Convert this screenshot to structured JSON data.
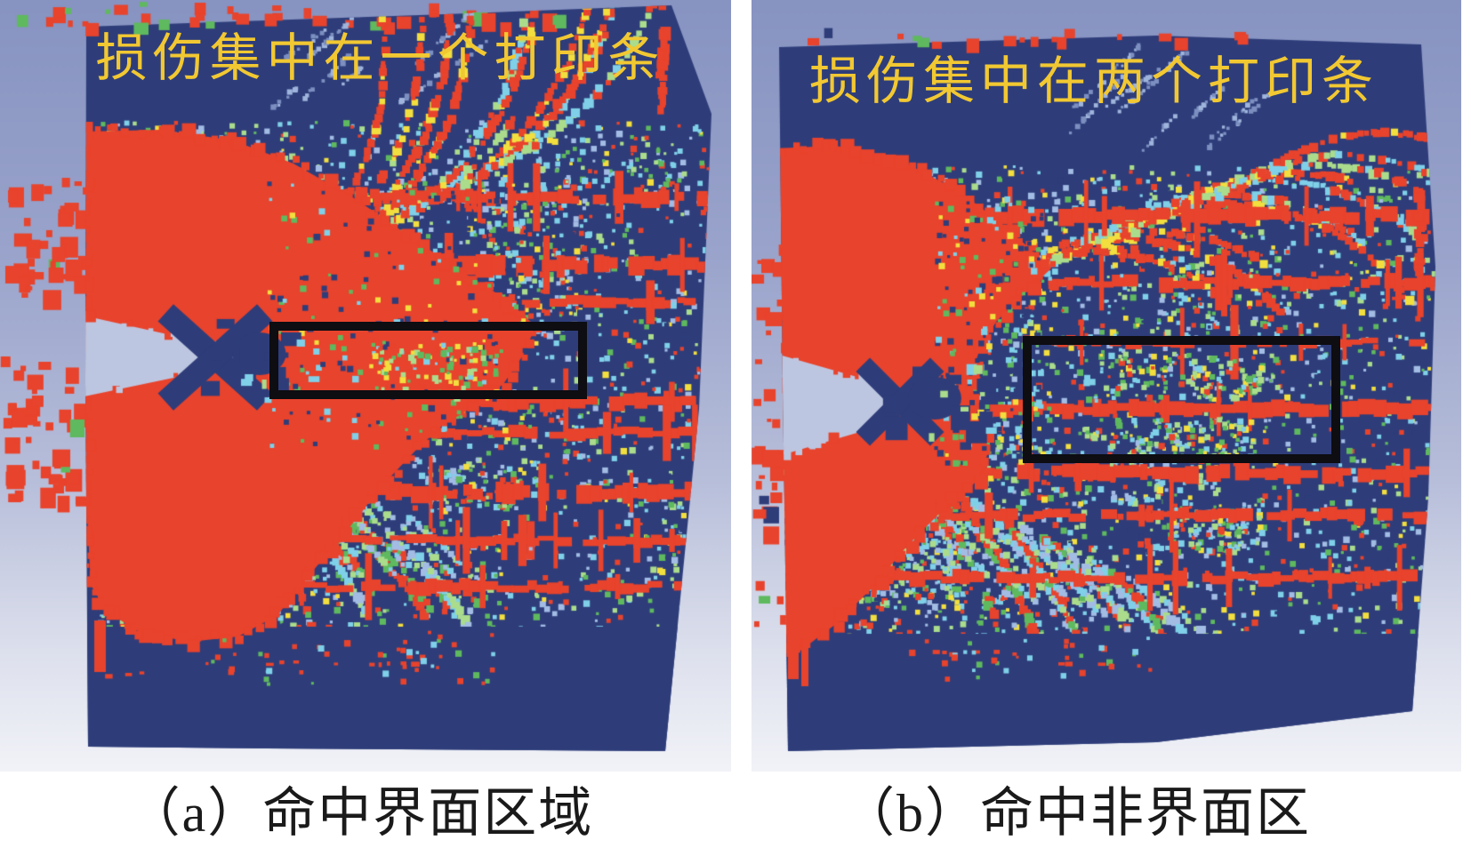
{
  "figure": {
    "panels": [
      {
        "id": "a",
        "overlay_label": "损伤集中在一个打印条",
        "caption": "（a）命中界面区域"
      },
      {
        "id": "b",
        "overlay_label": "损伤集中在两个打印条",
        "caption": "（b）命中非界面区"
      }
    ],
    "palette": {
      "page_bg": "#FFFFFF",
      "background_top": "#8793C1",
      "background_mid": "#B7BEDA",
      "background_bottom": "#F2F3F8",
      "body_navy": "#2E3D7A",
      "damage_red": "#E8432C",
      "speckle_cyan": "#7FD0E8",
      "speckle_green": "#5FB95E",
      "speckle_lightgreen": "#AADC8C",
      "speckle_yellow": "#F2DE3E",
      "speckle_lightblue": "#A2BCE4",
      "notch_light": "#BDC6E0",
      "overlay_text_yellow": "#F2C832",
      "highlight_box_black": "#0D0D12",
      "caption_text": "#1A1A1A"
    }
  }
}
